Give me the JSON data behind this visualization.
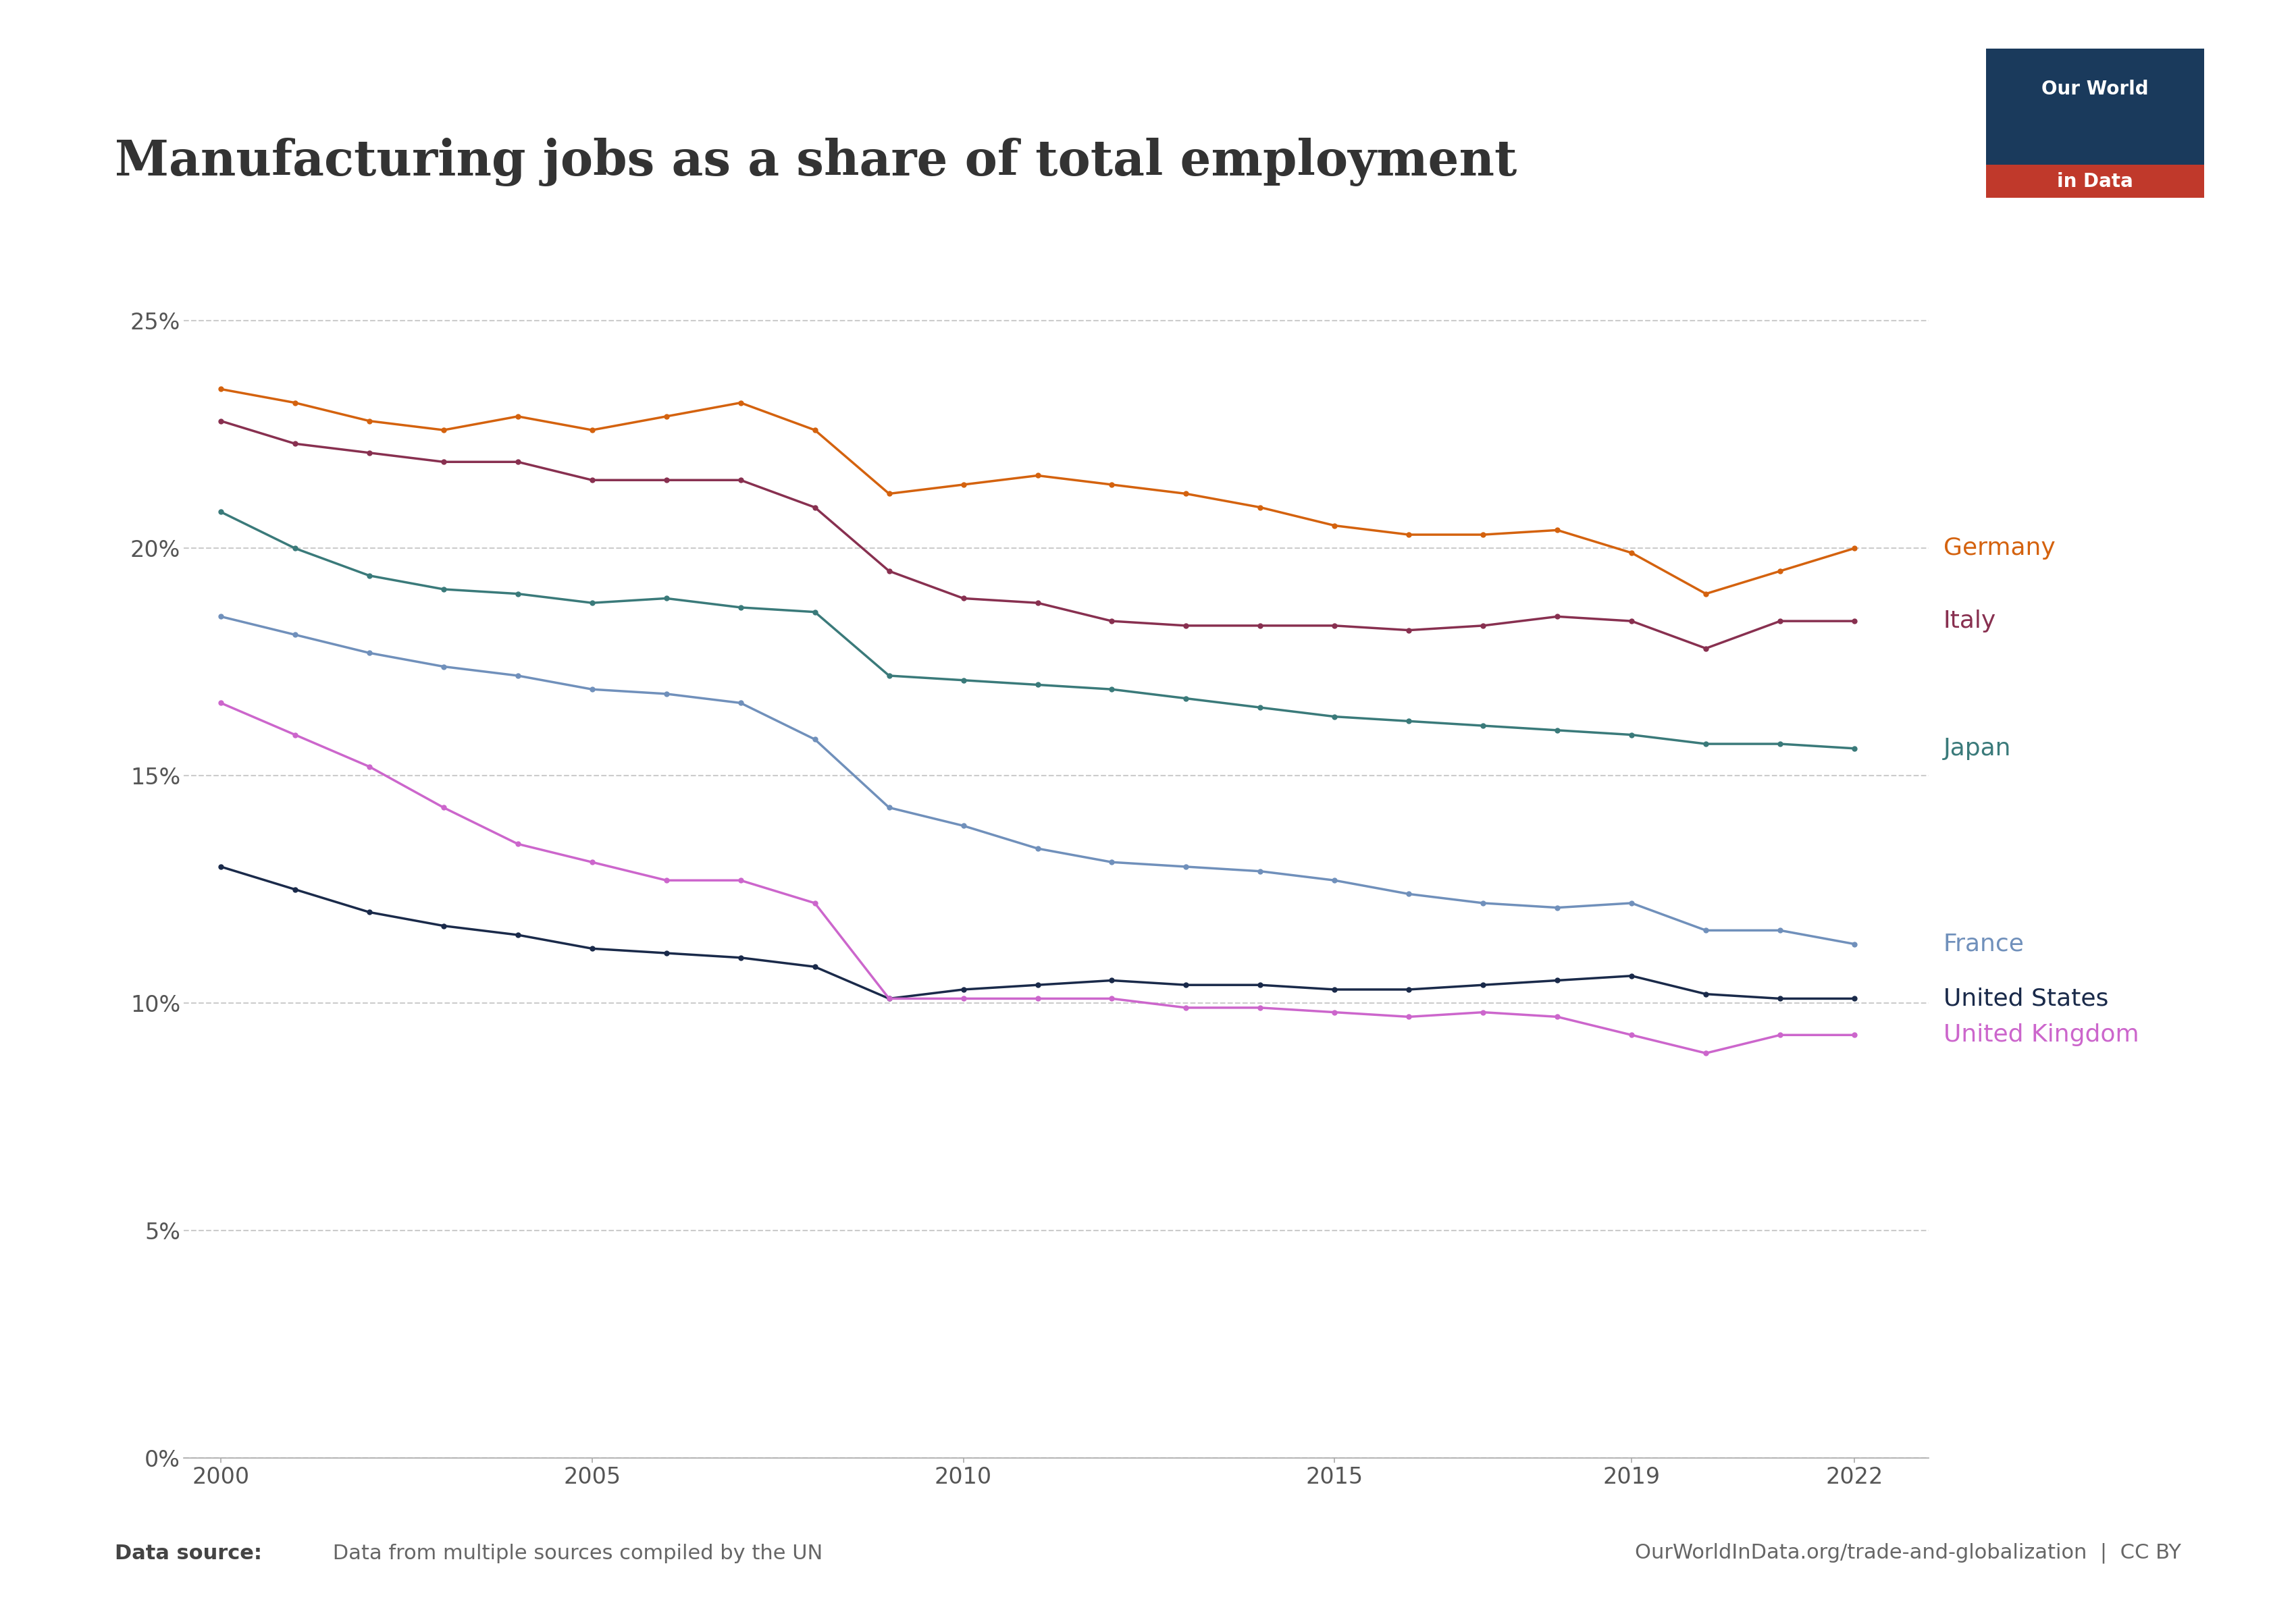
{
  "title": "Manufacturing jobs as a share of total employment",
  "source_label_bold": "Data source:",
  "source_label_normal": " Data from multiple sources compiled by the UN",
  "url_label": "OurWorldInData.org/trade-and-globalization  |  CC BY",
  "logo_text_line1": "Our World",
  "logo_text_line2": "in Data",
  "logo_bg_color": "#1a3a5c",
  "logo_red_color": "#c0392b",
  "countries": [
    "Germany",
    "Italy",
    "Japan",
    "France",
    "United States",
    "United Kingdom"
  ],
  "colors": {
    "Germany": "#d4620e",
    "Italy": "#883050",
    "Japan": "#3a7a7a",
    "France": "#7090bb",
    "United States": "#1a2a4a",
    "United Kingdom": "#cc66cc"
  },
  "years": [
    2000,
    2001,
    2002,
    2003,
    2004,
    2005,
    2006,
    2007,
    2008,
    2009,
    2010,
    2011,
    2012,
    2013,
    2014,
    2015,
    2016,
    2017,
    2018,
    2019,
    2020,
    2021,
    2022
  ],
  "data": {
    "Germany": [
      23.5,
      23.2,
      22.8,
      22.6,
      22.9,
      22.6,
      22.9,
      23.2,
      22.6,
      21.2,
      21.4,
      21.6,
      21.4,
      21.2,
      20.9,
      20.5,
      20.3,
      20.3,
      20.4,
      19.9,
      19.0,
      19.5,
      20.0
    ],
    "Italy": [
      22.8,
      22.3,
      22.1,
      21.9,
      21.9,
      21.5,
      21.5,
      21.5,
      20.9,
      19.5,
      18.9,
      18.8,
      18.4,
      18.3,
      18.3,
      18.3,
      18.2,
      18.3,
      18.5,
      18.4,
      17.8,
      18.4,
      18.4
    ],
    "Japan": [
      20.8,
      20.0,
      19.4,
      19.1,
      19.0,
      18.8,
      18.9,
      18.7,
      18.6,
      17.2,
      17.1,
      17.0,
      16.9,
      16.7,
      16.5,
      16.3,
      16.2,
      16.1,
      16.0,
      15.9,
      15.7,
      15.7,
      15.6
    ],
    "France": [
      18.5,
      18.1,
      17.7,
      17.4,
      17.2,
      16.9,
      16.8,
      16.6,
      15.8,
      14.3,
      13.9,
      13.4,
      13.1,
      13.0,
      12.9,
      12.7,
      12.4,
      12.2,
      12.1,
      12.2,
      11.6,
      11.6,
      11.3
    ],
    "United States": [
      13.0,
      12.5,
      12.0,
      11.7,
      11.5,
      11.2,
      11.1,
      11.0,
      10.8,
      10.1,
      10.3,
      10.4,
      10.5,
      10.4,
      10.4,
      10.3,
      10.3,
      10.4,
      10.5,
      10.6,
      10.2,
      10.1,
      10.1
    ],
    "United Kingdom": [
      16.6,
      15.9,
      15.2,
      14.3,
      13.5,
      13.1,
      12.7,
      12.7,
      12.2,
      10.1,
      10.1,
      10.1,
      10.1,
      9.9,
      9.9,
      9.8,
      9.7,
      9.8,
      9.7,
      9.3,
      8.9,
      9.3,
      9.3
    ]
  },
  "ylim": [
    0,
    26
  ],
  "yticks": [
    0,
    5,
    10,
    15,
    20,
    25
  ],
  "ytick_labels": [
    "0%",
    "5%",
    "10%",
    "15%",
    "20%",
    "25%"
  ],
  "xticks": [
    2000,
    2005,
    2010,
    2015,
    2019,
    2022
  ],
  "background_color": "#ffffff",
  "grid_color": "#cccccc",
  "label_fontsize": 26,
  "tick_fontsize": 24,
  "title_fontsize": 52,
  "source_fontsize": 22
}
